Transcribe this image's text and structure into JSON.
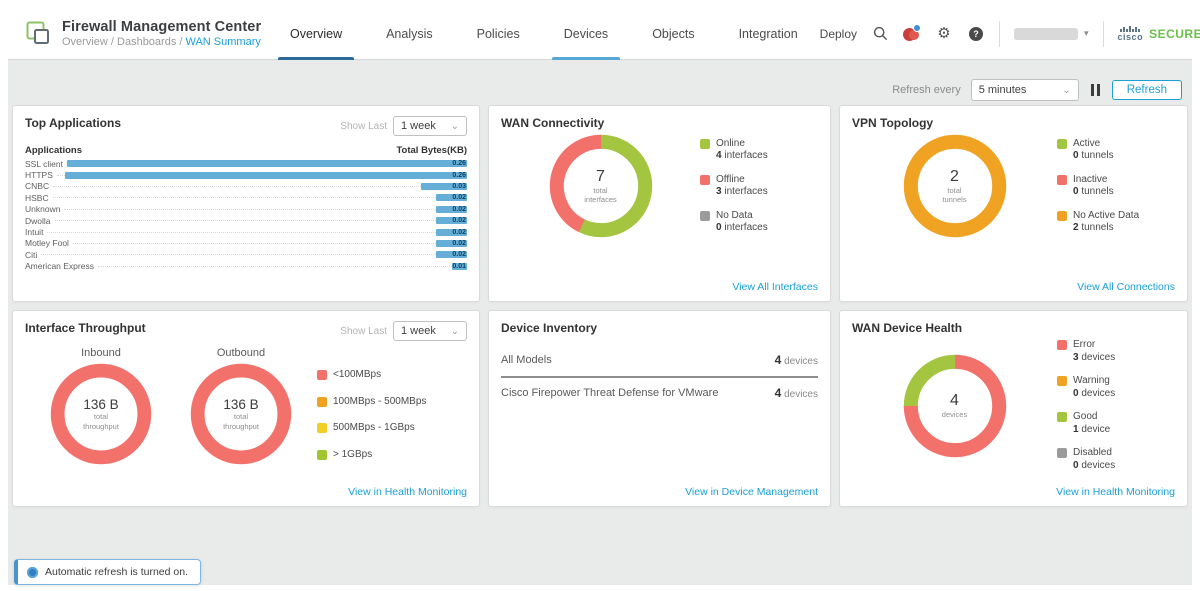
{
  "header": {
    "app_title": "Firewall Management Center",
    "breadcrumb": {
      "path": "Overview / Dashboards /",
      "current": "WAN Summary"
    },
    "tabs": [
      {
        "label": "Overview",
        "state": "active"
      },
      {
        "label": "Analysis",
        "state": ""
      },
      {
        "label": "Policies",
        "state": ""
      },
      {
        "label": "Devices",
        "state": "secondary"
      },
      {
        "label": "Objects",
        "state": ""
      },
      {
        "label": "Integration",
        "state": ""
      }
    ],
    "deploy_label": "Deploy",
    "brand": {
      "cisco": "cisco",
      "secure": "SECURE"
    }
  },
  "toolbar": {
    "refresh_every_label": "Refresh every",
    "interval_value": "5 minutes",
    "refresh_label": "Refresh"
  },
  "cards": {
    "top_applications": {
      "title": "Top Applications",
      "show_last_label": "Show Last",
      "range_value": "1 week",
      "col_app": "Applications",
      "col_bytes": "Total Bytes(KB)",
      "chart": {
        "type": "bar",
        "bar_color": "#64aed8",
        "max": 0.26,
        "categories": [
          "SSL client",
          "HTTPS",
          "CNBC",
          "HSBC",
          "Unknown",
          "Dwolla",
          "Intuit",
          "Motley Fool",
          "Citi",
          "American Express"
        ],
        "values": [
          0.26,
          0.26,
          0.03,
          0.02,
          0.02,
          0.02,
          0.02,
          0.02,
          0.02,
          0.01
        ]
      }
    },
    "wan_connectivity": {
      "title": "WAN Connectivity",
      "donut": {
        "type": "pie",
        "center_value": "7",
        "center_line1": "total",
        "center_line2": "interfaces",
        "segments": [
          {
            "label": "Online",
            "color": "#a3c53f",
            "value": 4
          },
          {
            "label": "Offline",
            "color": "#f3716b",
            "value": 3
          },
          {
            "label": "No Data",
            "color": "#9b9b9b",
            "value": 0
          }
        ]
      },
      "legend": [
        {
          "color": "#a3c53f",
          "label": "Online",
          "count": "4",
          "unit": "interfaces"
        },
        {
          "color": "#f3716b",
          "label": "Offline",
          "count": "3",
          "unit": "interfaces"
        },
        {
          "color": "#9b9b9b",
          "label": "No Data",
          "count": "0",
          "unit": "interfaces"
        }
      ],
      "link": "View All Interfaces"
    },
    "vpn_topology": {
      "title": "VPN Topology",
      "donut": {
        "type": "pie",
        "center_value": "2",
        "center_line1": "total",
        "center_line2": "tunnels",
        "segments": [
          {
            "label": "Active",
            "color": "#a3c53f",
            "value": 0
          },
          {
            "label": "Inactive",
            "color": "#f3716b",
            "value": 0
          },
          {
            "label": "No Active Data",
            "color": "#f0a322",
            "value": 2
          }
        ]
      },
      "legend": [
        {
          "color": "#a3c53f",
          "label": "Active",
          "count": "0",
          "unit": "tunnels"
        },
        {
          "color": "#f3716b",
          "label": "Inactive",
          "count": "0",
          "unit": "tunnels"
        },
        {
          "color": "#f0a322",
          "label": "No Active Data",
          "count": "2",
          "unit": "tunnels"
        }
      ],
      "link": "View All Connections"
    },
    "interface_throughput": {
      "title": "Interface Throughput",
      "show_last_label": "Show Last",
      "range_value": "1 week",
      "inbound": {
        "label": "Inbound",
        "center_value": "136 B",
        "center_line1": "total",
        "center_line2": "throughput",
        "segments": [
          {
            "label": "<100MBps",
            "color": "#f3716b",
            "value": 1
          }
        ]
      },
      "outbound": {
        "label": "Outbound",
        "center_value": "136 B",
        "center_line1": "total",
        "center_line2": "throughput",
        "segments": [
          {
            "label": "<100MBps",
            "color": "#f3716b",
            "value": 1
          }
        ]
      },
      "legend": [
        {
          "color": "#f3716b",
          "label": "<100MBps"
        },
        {
          "color": "#f0a322",
          "label": "100MBps - 500MBps"
        },
        {
          "color": "#f2cf27",
          "label": "500MBps - 1GBps"
        },
        {
          "color": "#a0c52f",
          "label": "> 1GBps"
        }
      ],
      "link": "View in Health Monitoring"
    },
    "device_inventory": {
      "title": "Device Inventory",
      "rows": [
        {
          "label": "All Models",
          "count": "4",
          "unit": "devices",
          "header": true
        },
        {
          "label": "Cisco Firepower Threat Defense for VMware",
          "count": "4",
          "unit": "devices",
          "header": false
        }
      ],
      "link": "View in Device Management"
    },
    "wan_device_health": {
      "title": "WAN Device Health",
      "donut": {
        "type": "pie",
        "center_value": "4",
        "center_line1": "devices",
        "center_line2": "",
        "segments": [
          {
            "label": "Error",
            "color": "#f3716b",
            "value": 3
          },
          {
            "label": "Warning",
            "color": "#f0a322",
            "value": 0
          },
          {
            "label": "Good",
            "color": "#a3c53f",
            "value": 1
          },
          {
            "label": "Disabled",
            "color": "#9b9b9b",
            "value": 0
          }
        ]
      },
      "legend": [
        {
          "color": "#f3716b",
          "label": "Error",
          "count": "3",
          "unit": "devices"
        },
        {
          "color": "#f0a322",
          "label": "Warning",
          "count": "0",
          "unit": "devices"
        },
        {
          "color": "#a3c53f",
          "label": "Good",
          "count": "1",
          "unit": "device"
        },
        {
          "color": "#9b9b9b",
          "label": "Disabled",
          "count": "0",
          "unit": "devices"
        }
      ],
      "link": "View in Health Monitoring"
    }
  },
  "toast": {
    "message": "Automatic refresh is turned on."
  }
}
